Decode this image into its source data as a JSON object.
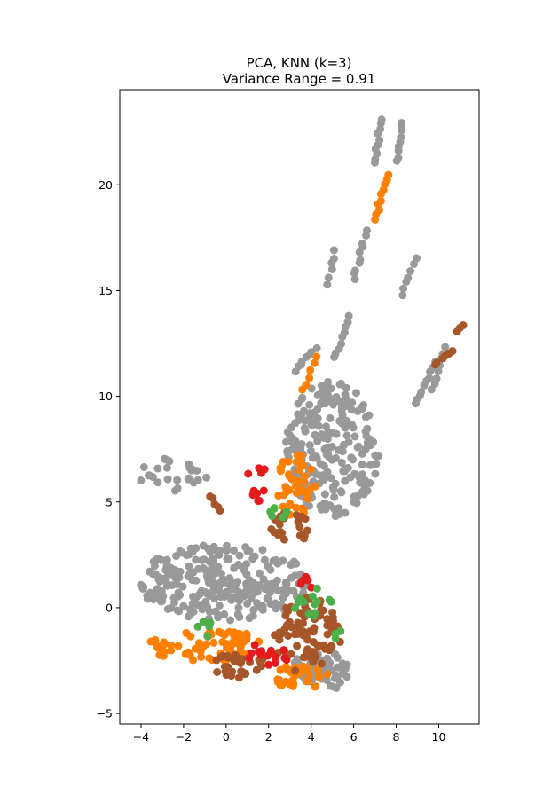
{
  "chart_data": {
    "type": "scatter",
    "title": "PCA, KNN (k=3)",
    "subtitle": "Variance Range = 0.91",
    "xlabel": "",
    "ylabel": "",
    "xlim": [
      -5.0,
      11.9
    ],
    "ylim": [
      -5.5,
      24.5
    ],
    "xticks": [
      -4,
      -2,
      0,
      2,
      4,
      6,
      8,
      10
    ],
    "xtick_labels": [
      "−4",
      "−2",
      "0",
      "2",
      "4",
      "6",
      "8",
      "10"
    ],
    "yticks": [
      -5,
      0,
      5,
      10,
      15,
      20
    ],
    "ytick_labels": [
      "−5",
      "0",
      "5",
      "10",
      "15",
      "20"
    ],
    "grid": false,
    "legend": "none",
    "colors": {
      "gray": "#999999",
      "orange": "#ff7f00",
      "brown": "#a65628",
      "red": "#e41a1c",
      "green": "#4daf4a"
    },
    "series": [
      {
        "color": "gray",
        "clusters": [
          {
            "type": "blob",
            "cx": 0.0,
            "cy": 1.2,
            "rx": 4.2,
            "ry": 1.8,
            "n": 260
          },
          {
            "type": "blob",
            "cx": 5.0,
            "cy": 7.5,
            "rx": 2.2,
            "ry": 3.2,
            "n": 220
          },
          {
            "type": "blob",
            "cx": 4.5,
            "cy": -3.0,
            "rx": 1.5,
            "ry": 0.9,
            "n": 70
          },
          {
            "type": "blob",
            "cx": -2.5,
            "cy": 6.2,
            "rx": 1.6,
            "ry": 1.0,
            "n": 25
          },
          {
            "type": "line",
            "x0": 7.0,
            "y0": 21.0,
            "x1": 7.3,
            "y1": 23.1,
            "n": 10
          },
          {
            "type": "line",
            "x0": 8.0,
            "y0": 21.1,
            "x1": 8.3,
            "y1": 23.0,
            "n": 9
          },
          {
            "type": "line",
            "x0": 6.0,
            "y0": 15.5,
            "x1": 6.6,
            "y1": 17.8,
            "n": 10
          },
          {
            "type": "line",
            "x0": 4.8,
            "y0": 15.3,
            "x1": 5.1,
            "y1": 16.9,
            "n": 6
          },
          {
            "type": "line",
            "x0": 8.3,
            "y0": 14.8,
            "x1": 8.9,
            "y1": 16.5,
            "n": 7
          },
          {
            "type": "line",
            "x0": 5.1,
            "y0": 11.8,
            "x1": 5.8,
            "y1": 13.8,
            "n": 9
          },
          {
            "type": "line",
            "x0": 8.9,
            "y0": 9.6,
            "x1": 9.8,
            "y1": 11.6,
            "n": 10
          },
          {
            "type": "line",
            "x0": 9.7,
            "y0": 10.3,
            "x1": 10.3,
            "y1": 12.3,
            "n": 8
          },
          {
            "type": "line",
            "x0": 3.2,
            "y0": 11.2,
            "x1": 4.2,
            "y1": 12.3,
            "n": 8
          }
        ]
      },
      {
        "color": "orange",
        "clusters": [
          {
            "type": "blob",
            "cx": -0.8,
            "cy": -1.8,
            "rx": 3.0,
            "ry": 0.7,
            "n": 70
          },
          {
            "type": "blob",
            "cx": 3.3,
            "cy": 5.8,
            "rx": 0.9,
            "ry": 1.5,
            "n": 40
          },
          {
            "type": "blob",
            "cx": 3.5,
            "cy": -3.3,
            "rx": 1.3,
            "ry": 0.6,
            "n": 30
          },
          {
            "type": "line",
            "x0": 7.0,
            "y0": 18.4,
            "x1": 7.6,
            "y1": 20.4,
            "n": 10
          },
          {
            "type": "line",
            "x0": 3.6,
            "y0": 10.3,
            "x1": 4.2,
            "y1": 11.8,
            "n": 6
          }
        ]
      },
      {
        "color": "brown",
        "clusters": [
          {
            "type": "blob",
            "cx": 3.8,
            "cy": -1.3,
            "rx": 1.6,
            "ry": 1.8,
            "n": 90
          },
          {
            "type": "blob",
            "cx": 0.5,
            "cy": -2.8,
            "rx": 1.5,
            "ry": 0.6,
            "n": 35
          },
          {
            "type": "blob",
            "cx": 3.0,
            "cy": 3.8,
            "rx": 0.9,
            "ry": 0.8,
            "n": 25
          },
          {
            "type": "line",
            "x0": -0.8,
            "y0": 5.3,
            "x1": -0.3,
            "y1": 4.6,
            "n": 5
          },
          {
            "type": "line",
            "x0": 9.8,
            "y0": 11.5,
            "x1": 10.6,
            "y1": 12.2,
            "n": 6
          },
          {
            "type": "line",
            "x0": 10.9,
            "y0": 13.1,
            "x1": 11.1,
            "y1": 13.4,
            "n": 3
          }
        ]
      },
      {
        "color": "red",
        "clusters": [
          {
            "type": "blob",
            "cx": 2.0,
            "cy": -2.2,
            "rx": 1.0,
            "ry": 0.6,
            "n": 15
          },
          {
            "type": "blob",
            "cx": 3.8,
            "cy": 1.2,
            "rx": 0.4,
            "ry": 0.3,
            "n": 5
          },
          {
            "type": "blob",
            "cx": 1.5,
            "cy": 5.8,
            "rx": 0.6,
            "ry": 1.0,
            "n": 10
          }
        ]
      },
      {
        "color": "green",
        "clusters": [
          {
            "type": "blob",
            "cx": 4.0,
            "cy": 0.3,
            "rx": 1.0,
            "ry": 0.7,
            "n": 14
          },
          {
            "type": "blob",
            "cx": -1.0,
            "cy": -1.0,
            "rx": 0.4,
            "ry": 0.4,
            "n": 5
          },
          {
            "type": "blob",
            "cx": 2.5,
            "cy": 4.5,
            "rx": 0.5,
            "ry": 0.3,
            "n": 6
          },
          {
            "type": "blob",
            "cx": 5.2,
            "cy": -1.3,
            "rx": 0.3,
            "ry": 0.3,
            "n": 3
          }
        ]
      }
    ]
  }
}
